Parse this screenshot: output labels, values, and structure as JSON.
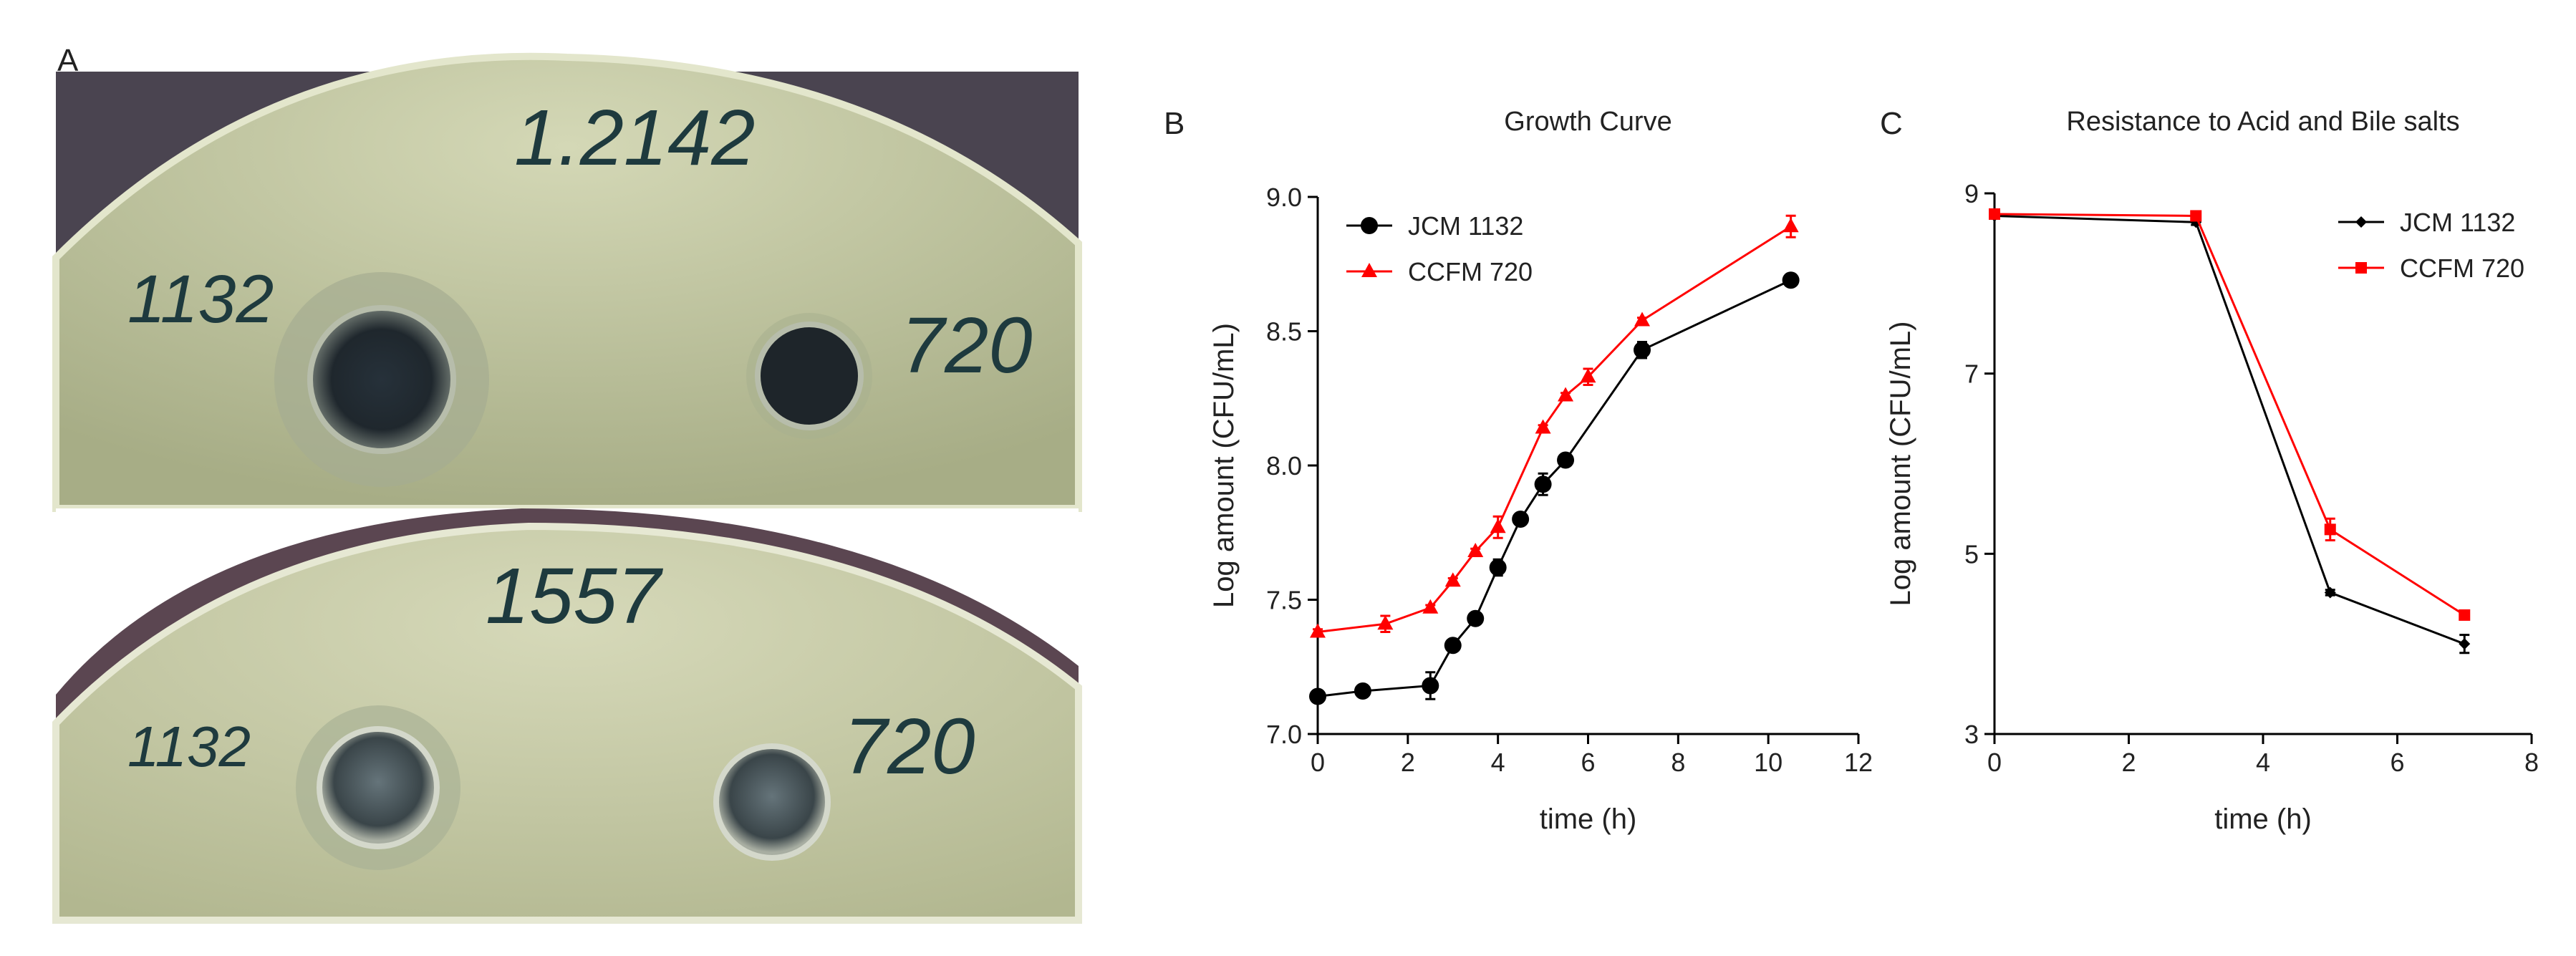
{
  "panels": {
    "a": {
      "label": "A"
    },
    "b": {
      "label": "B"
    },
    "c": {
      "label": "C"
    }
  },
  "plates": [
    {
      "id": "top",
      "header_note": "1.2142",
      "left_note": "1132",
      "right_note": "720",
      "colors": {
        "agar": "#b9bf99",
        "bg": "#4f4a52",
        "well": "#2a2f33"
      }
    },
    {
      "id": "bottom",
      "header_note": "1557",
      "left_note": "1132",
      "right_note": "720",
      "colors": {
        "agar": "#c3c7a2",
        "bg": "#5b4651",
        "well": "#3e4a4f"
      }
    }
  ],
  "chart_data": [
    {
      "id": "growth",
      "type": "line",
      "title": "Growth Curve",
      "xlabel": "time (h)",
      "ylabel": "Log amount (CFU/mL)",
      "xlim": [
        0,
        12
      ],
      "ylim": [
        7.0,
        9.0
      ],
      "xticks": [
        0,
        2,
        4,
        6,
        8,
        10,
        12
      ],
      "yticks": [
        7.0,
        7.5,
        8.0,
        8.5,
        9.0
      ],
      "ytick_labels": [
        "7.0",
        "7.5",
        "8.0",
        "8.5",
        "9.0"
      ],
      "legend": "top-left",
      "series": [
        {
          "name": "JCM 1132",
          "color": "#000000",
          "marker": "circle",
          "x": [
            0,
            1,
            2.5,
            3,
            3.5,
            4,
            4.5,
            5,
            5.5,
            7.2,
            10.5
          ],
          "y": [
            7.14,
            7.16,
            7.18,
            7.33,
            7.43,
            7.62,
            7.8,
            7.93,
            8.02,
            8.43,
            8.69
          ],
          "err": [
            0.02,
            0.02,
            0.05,
            0.02,
            0.02,
            0.03,
            0.02,
            0.04,
            0.02,
            0.03,
            0.02
          ]
        },
        {
          "name": "CCFM 720",
          "color": "#ff0000",
          "marker": "triangle",
          "x": [
            0,
            1.5,
            2.5,
            3,
            3.5,
            4,
            5,
            5.5,
            6,
            7.2,
            10.5
          ],
          "y": [
            7.38,
            7.41,
            7.47,
            7.57,
            7.68,
            7.77,
            8.14,
            8.26,
            8.33,
            8.54,
            8.89
          ],
          "err": [
            0.01,
            0.03,
            0.01,
            0.01,
            0.01,
            0.04,
            0.01,
            0.01,
            0.03,
            0.01,
            0.04
          ]
        }
      ]
    },
    {
      "id": "resistance",
      "type": "line",
      "title": "Resistance to Acid and Bile salts",
      "xlabel": "time (h)",
      "ylabel": "Log amount (CFU/mL)",
      "xlim": [
        0,
        8
      ],
      "ylim": [
        3,
        9
      ],
      "xticks": [
        0,
        2,
        4,
        6,
        8
      ],
      "yticks": [
        3,
        5,
        7,
        9
      ],
      "ytick_labels": [
        "3",
        "5",
        "7",
        "9"
      ],
      "legend": "top-right",
      "series": [
        {
          "name": "JCM 1132",
          "color": "#000000",
          "marker": "diamond",
          "x": [
            0,
            3,
            5,
            7
          ],
          "y": [
            8.75,
            8.68,
            4.57,
            4.0
          ],
          "err": [
            0.03,
            0.03,
            0.03,
            0.1
          ]
        },
        {
          "name": "CCFM 720",
          "color": "#ff0000",
          "marker": "square",
          "x": [
            0,
            3,
            5,
            7
          ],
          "y": [
            8.77,
            8.75,
            5.27,
            4.32
          ],
          "err": [
            0.03,
            0.03,
            0.12,
            0.03
          ]
        }
      ]
    }
  ]
}
